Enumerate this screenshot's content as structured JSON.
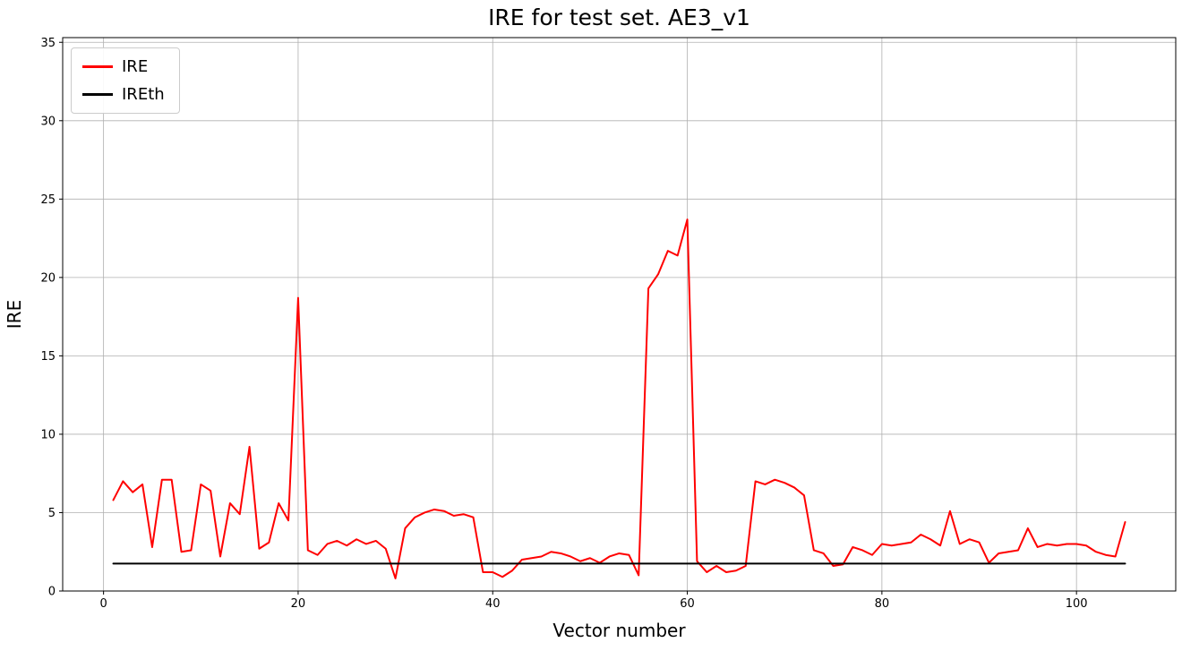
{
  "chart_data": {
    "type": "line",
    "title": "IRE for test set. AE3_v1",
    "xlabel": "Vector number",
    "ylabel": "IRE",
    "xlim": [
      -4.2,
      110.2
    ],
    "ylim": [
      0,
      35.3
    ],
    "x_ticks": [
      0,
      20,
      40,
      60,
      80,
      100
    ],
    "y_ticks": [
      0,
      5,
      10,
      15,
      20,
      25,
      30,
      35
    ],
    "grid": true,
    "legend_position": "upper-left",
    "series": [
      {
        "name": "IRE",
        "color": "#ff0000",
        "x_start": 1,
        "values": [
          5.8,
          7.0,
          6.3,
          6.8,
          2.8,
          7.1,
          7.1,
          2.5,
          2.6,
          6.8,
          6.4,
          2.2,
          5.6,
          4.9,
          9.2,
          2.7,
          3.1,
          5.6,
          4.5,
          18.7,
          2.6,
          2.3,
          3.0,
          3.2,
          2.9,
          3.3,
          3.0,
          3.2,
          2.7,
          0.8,
          4.0,
          4.7,
          5.0,
          5.2,
          5.1,
          4.8,
          4.9,
          4.7,
          1.2,
          1.2,
          0.9,
          1.3,
          2.0,
          2.1,
          2.2,
          2.5,
          2.4,
          2.2,
          1.9,
          2.1,
          1.8,
          2.2,
          2.4,
          2.3,
          1.0,
          19.3,
          20.2,
          21.7,
          21.4,
          23.7,
          1.9,
          1.2,
          1.6,
          1.2,
          1.3,
          1.6,
          7.0,
          6.8,
          7.1,
          6.9,
          6.6,
          6.1,
          2.6,
          2.4,
          1.6,
          1.7,
          2.8,
          2.6,
          2.3,
          3.0,
          2.9,
          3.0,
          3.1,
          3.6,
          3.3,
          2.9,
          5.1,
          3.0,
          3.3,
          3.1,
          1.8,
          2.4,
          2.5,
          2.6,
          4.0,
          2.8,
          3.0,
          2.9,
          3.0,
          3.0,
          2.9,
          2.5,
          2.3,
          2.2,
          4.4
        ]
      },
      {
        "name": "IREth",
        "color": "#000000",
        "x": [
          1,
          105
        ],
        "values": [
          1.75,
          1.75
        ]
      }
    ]
  }
}
